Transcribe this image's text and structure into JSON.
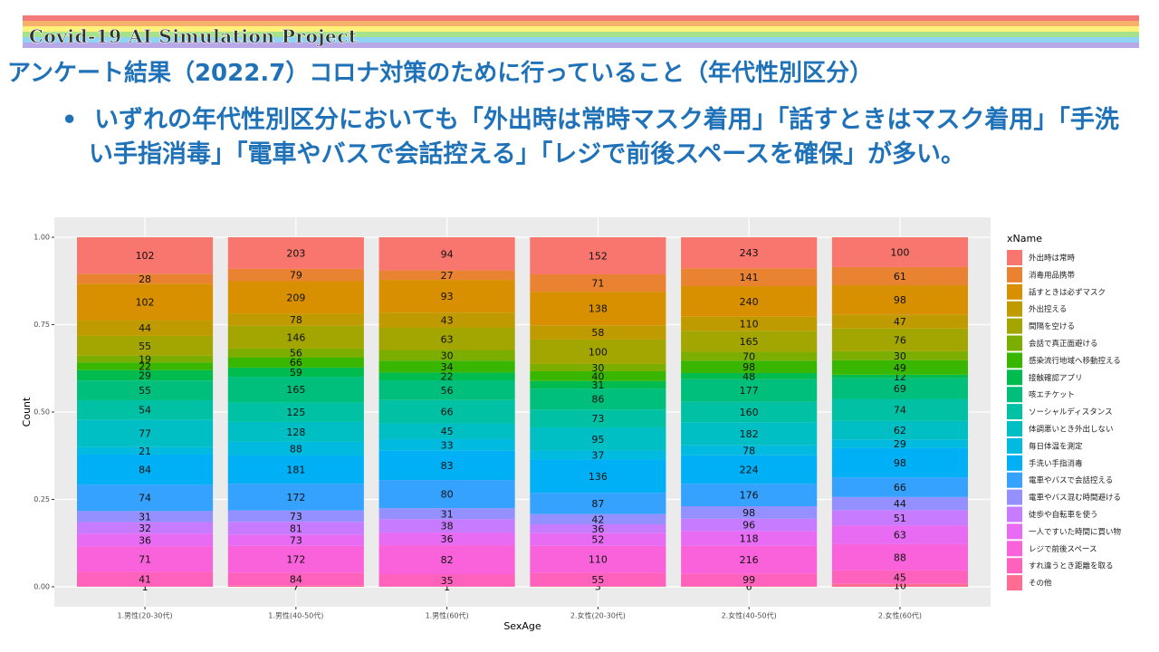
{
  "header": {
    "project": "Covid-19 AI Simulation Project",
    "title": "アンケート結果（2022.7）コロナ対策のために行っていること（年代性別区分）",
    "bullet": "いずれの年代性別区分においても「外出時は常時マスク着用」「話すときはマスク着用」「手洗い手指消毒」「電車やバスで会話控える」「レジで前後スペースを確保」が多い。"
  },
  "chart_data": {
    "type": "stacked_bar_percent",
    "ylabel": "Count",
    "xlabel": "SexAge",
    "legend_title": "xName",
    "categories": [
      "1.男性(20-30代)",
      "1.男性(40-50代)",
      "1.男性(60代)",
      "2.女性(20-30代)",
      "2.女性(40-50代)",
      "2.女性(60代)"
    ],
    "ylim": [
      0,
      1
    ],
    "yticks": [
      {
        "value": 0,
        "label": "0.00"
      },
      {
        "value": 0.25,
        "label": "0.25"
      },
      {
        "value": 0.5,
        "label": "0.50"
      },
      {
        "value": 0.75,
        "label": "0.75"
      },
      {
        "value": 1,
        "label": "1.00"
      }
    ],
    "grid": true,
    "series": [
      {
        "name": "外出時は常時",
        "color": "#F8766D",
        "values": [
          102,
          203,
          94,
          152,
          243,
          100
        ]
      },
      {
        "name": "消毒用品携帯",
        "color": "#EA8331",
        "values": [
          28,
          79,
          27,
          71,
          141,
          61
        ]
      },
      {
        "name": "話すときは必ずマスク",
        "color": "#D89000",
        "values": [
          102,
          209,
          93,
          138,
          240,
          98
        ]
      },
      {
        "name": "外出控える",
        "color": "#C09B00",
        "values": [
          44,
          78,
          43,
          58,
          110,
          47
        ]
      },
      {
        "name": "間隔を空ける",
        "color": "#A3A500",
        "values": [
          55,
          146,
          63,
          100,
          165,
          76
        ]
      },
      {
        "name": "会話で真正面避ける",
        "color": "#7CAE00",
        "values": [
          19,
          56,
          30,
          30,
          70,
          30
        ]
      },
      {
        "name": "感染流行地域へ移動控える",
        "color": "#39B600",
        "values": [
          22,
          66,
          34,
          40,
          98,
          49
        ]
      },
      {
        "name": "接触確認アプリ",
        "color": "#00BB4E",
        "values": [
          29,
          59,
          22,
          31,
          48,
          12
        ]
      },
      {
        "name": "咳エチケット",
        "color": "#00BF7D",
        "values": [
          55,
          165,
          56,
          86,
          177,
          69
        ]
      },
      {
        "name": "ソーシャルディスタンス",
        "color": "#00C1A3",
        "values": [
          54,
          125,
          66,
          73,
          160,
          74
        ]
      },
      {
        "name": "体調悪いとき外出しない",
        "color": "#00BFC4",
        "values": [
          77,
          128,
          45,
          95,
          182,
          62
        ]
      },
      {
        "name": "毎日体温を測定",
        "color": "#00BAE0",
        "values": [
          21,
          88,
          33,
          37,
          78,
          29
        ]
      },
      {
        "name": "手洗い手指消毒",
        "color": "#00B0F6",
        "values": [
          84,
          181,
          83,
          136,
          224,
          98
        ]
      },
      {
        "name": "電車やバスで会話控える",
        "color": "#35A2FF",
        "values": [
          74,
          172,
          80,
          87,
          176,
          66
        ]
      },
      {
        "name": "電車やバス混む時間避ける",
        "color": "#9590FF",
        "values": [
          31,
          73,
          31,
          42,
          98,
          44
        ]
      },
      {
        "name": "徒歩や自転車を使う",
        "color": "#C77CFF",
        "values": [
          32,
          81,
          38,
          36,
          96,
          51
        ]
      },
      {
        "name": "一人ですいた時間に買い物",
        "color": "#E76BF3",
        "values": [
          36,
          73,
          36,
          52,
          118,
          63
        ]
      },
      {
        "name": "レジで前後スペース",
        "color": "#FA62DB",
        "values": [
          71,
          172,
          82,
          110,
          216,
          88
        ]
      },
      {
        "name": "すれ違うとき距離を取る",
        "color": "#FF62BC",
        "values": [
          41,
          84,
          35,
          55,
          99,
          45
        ]
      },
      {
        "name": "その他",
        "color": "#FF6C91",
        "values": [
          1,
          7,
          1,
          3,
          6,
          10
        ]
      }
    ]
  }
}
